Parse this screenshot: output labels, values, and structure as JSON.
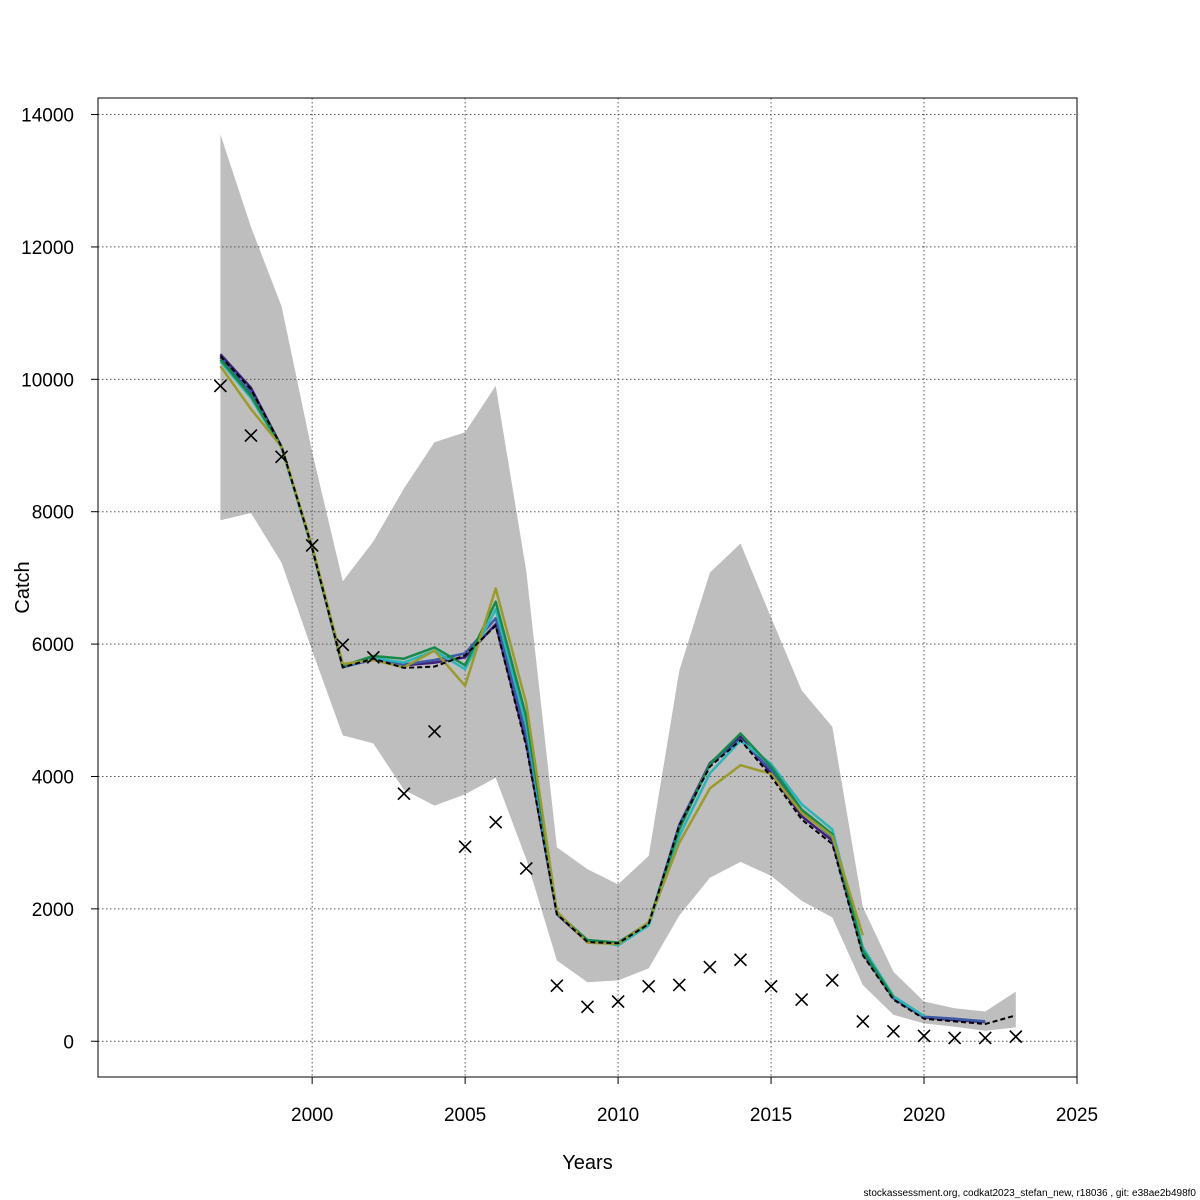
{
  "chart_data": {
    "type": "line",
    "xlabel": "Years",
    "ylabel": "Catch",
    "footer": "stockassessment.org, codkat2023_stefan_new, r18036 , git: e38ae2b498f0",
    "xlim": [
      1993,
      2025
    ],
    "ylim": [
      -540,
      14250
    ],
    "xticks": [
      2000,
      2005,
      2010,
      2015,
      2020,
      2025
    ],
    "yticks": [
      0,
      2000,
      4000,
      6000,
      8000,
      10000,
      12000,
      14000
    ],
    "grid": true,
    "colors": {
      "band": "#bebebe",
      "grid": "#555555",
      "dashed": "#000000"
    },
    "confidence_band": {
      "x": [
        1997,
        1998,
        1999,
        2000,
        2001,
        2002,
        2003,
        2004,
        2005,
        2006,
        2007,
        2008,
        2009,
        2010,
        2011,
        2012,
        2013,
        2014,
        2015,
        2016,
        2017,
        2018,
        2019,
        2020,
        2021,
        2022,
        2023
      ],
      "upper": [
        13700,
        12300,
        11100,
        8900,
        6950,
        7550,
        8350,
        9050,
        9200,
        9900,
        7100,
        2930,
        2600,
        2370,
        2800,
        5600,
        7080,
        7520,
        6400,
        5300,
        4750,
        2030,
        1050,
        600,
        500,
        450,
        750
      ],
      "lower": [
        7870,
        7980,
        7230,
        5900,
        4620,
        4500,
        3800,
        3560,
        3730,
        3980,
        2750,
        1220,
        890,
        920,
        1100,
        1900,
        2470,
        2710,
        2500,
        2120,
        1870,
        850,
        400,
        270,
        220,
        160,
        210
      ]
    },
    "observed": {
      "x": [
        1997,
        1998,
        1999,
        2000,
        2001,
        2002,
        2003,
        2004,
        2005,
        2006,
        2007,
        2008,
        2009,
        2010,
        2011,
        2012,
        2013,
        2014,
        2015,
        2016,
        2017,
        2018,
        2019,
        2020,
        2021,
        2022,
        2023
      ],
      "y": [
        9900,
        9150,
        8830,
        7490,
        5990,
        5800,
        3740,
        4680,
        2940,
        3310,
        2610,
        840,
        520,
        600,
        830,
        850,
        1120,
        1230,
        830,
        630,
        920,
        300,
        150,
        80,
        50,
        50,
        70
      ]
    },
    "series": [
      {
        "color": "#3f1f7a",
        "dashed": false,
        "x": [
          1997,
          1998,
          1999,
          2000,
          2001,
          2002,
          2003,
          2004,
          2005,
          2006,
          2007,
          2008,
          2009,
          2010,
          2011,
          2012,
          2013,
          2014,
          2015,
          2016,
          2017,
          2018,
          2019,
          2020,
          2021,
          2022
        ],
        "y": [
          10380,
          9870,
          8980,
          7450,
          5650,
          5780,
          5680,
          5720,
          5800,
          6300,
          4500,
          1920,
          1500,
          1480,
          1770,
          3270,
          4200,
          4600,
          4050,
          3400,
          3030,
          1330,
          650,
          360,
          320,
          290
        ]
      },
      {
        "color": "#3b5aa8",
        "dashed": false,
        "x": [
          1997,
          1998,
          1999,
          2000,
          2001,
          2002,
          2003,
          2004,
          2005,
          2006,
          2007,
          2008,
          2009,
          2010,
          2011,
          2012,
          2013,
          2014,
          2015,
          2016,
          2017,
          2018,
          2019,
          2020,
          2021,
          2022
        ],
        "y": [
          10330,
          9800,
          8970,
          7450,
          5660,
          5760,
          5690,
          5760,
          5860,
          6390,
          4620,
          1930,
          1510,
          1480,
          1770,
          3260,
          4180,
          4560,
          4100,
          3470,
          3080,
          1330,
          650,
          370,
          340,
          300
        ]
      },
      {
        "color": "#2bb5b8",
        "dashed": false,
        "x": [
          1997,
          1998,
          1999,
          2000,
          2001,
          2002,
          2003,
          2004,
          2005,
          2006,
          2007,
          2008,
          2009,
          2010,
          2011,
          2012,
          2013,
          2014,
          2015,
          2016,
          2017,
          2018,
          2019,
          2020
        ],
        "y": [
          10270,
          9720,
          8960,
          7460,
          5670,
          5790,
          5720,
          5900,
          5620,
          6530,
          4770,
          1940,
          1520,
          1450,
          1750,
          3100,
          4050,
          4540,
          4190,
          3580,
          3200,
          1420,
          680,
          380
        ]
      },
      {
        "color": "#168a4a",
        "dashed": false,
        "x": [
          1997,
          1998,
          1999,
          2000,
          2001,
          2002,
          2003,
          2004,
          2005,
          2006,
          2007,
          2008,
          2009,
          2010,
          2011,
          2012,
          2013,
          2014,
          2015,
          2016,
          2017,
          2018,
          2019
        ],
        "y": [
          10300,
          9750,
          8980,
          7460,
          5670,
          5820,
          5780,
          5950,
          5680,
          6640,
          4900,
          1940,
          1530,
          1490,
          1790,
          3200,
          4190,
          4650,
          4150,
          3500,
          3130,
          1370,
          660
        ]
      },
      {
        "color": "#9b9a2c",
        "dashed": false,
        "x": [
          1997,
          1998,
          1999,
          2000,
          2001,
          2002,
          2003,
          2004,
          2005,
          2006,
          2007,
          2008,
          2009,
          2010,
          2011,
          2012,
          2013,
          2014,
          2015,
          2016,
          2017,
          2018
        ],
        "y": [
          10200,
          9550,
          8980,
          7480,
          5700,
          5760,
          5650,
          5900,
          5370,
          6840,
          5100,
          1960,
          1490,
          1470,
          1800,
          3000,
          3820,
          4170,
          4040,
          3450,
          3100,
          1600
        ]
      },
      {
        "color": "#000000",
        "dashed": true,
        "x": [
          1997,
          1998,
          1999,
          2000,
          2001,
          2002,
          2003,
          2004,
          2005,
          2006,
          2007,
          2008,
          2009,
          2010,
          2011,
          2012,
          2013,
          2014,
          2015,
          2016,
          2017,
          2018,
          2019,
          2020,
          2021,
          2022,
          2023
        ],
        "y": [
          10350,
          9850,
          8980,
          7450,
          5650,
          5780,
          5640,
          5660,
          5830,
          6280,
          4450,
          1920,
          1500,
          1480,
          1770,
          3260,
          4150,
          4550,
          4000,
          3350,
          2980,
          1300,
          630,
          340,
          300,
          260,
          390
        ]
      }
    ]
  }
}
